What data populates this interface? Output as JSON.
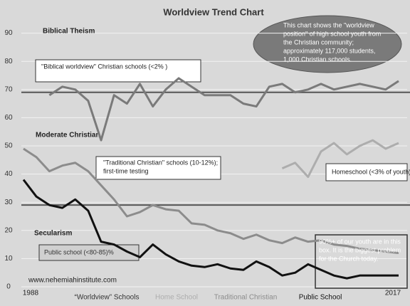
{
  "chart_data": {
    "type": "line",
    "title": "Worldview Trend Chart",
    "categories": [
      "1988",
      null,
      null,
      null,
      null,
      null,
      null,
      null,
      null,
      null,
      null,
      null,
      null,
      null,
      null,
      null,
      null,
      null,
      null,
      null,
      null,
      null,
      null,
      null,
      null,
      null,
      null,
      null,
      null,
      "2017"
    ],
    "series": [
      {
        "name": "“Worldview” Schools",
        "color": "#7a7a7a",
        "values": [
          null,
          null,
          68,
          71,
          70,
          66,
          52,
          68,
          65,
          72,
          64,
          70,
          74,
          71,
          68,
          68,
          68,
          65,
          64,
          71,
          72,
          69,
          70,
          72,
          70,
          71,
          72,
          71,
          70,
          73
        ]
      },
      {
        "name": "Home School",
        "color": "#adadad",
        "values": [
          null,
          null,
          null,
          null,
          null,
          null,
          null,
          null,
          null,
          null,
          null,
          null,
          null,
          null,
          null,
          null,
          null,
          null,
          null,
          null,
          42,
          44,
          39,
          48,
          51,
          47,
          50,
          52,
          49,
          51
        ]
      },
      {
        "name": "Traditional Christian",
        "color": "#8c8c8c",
        "values": [
          49,
          46,
          41,
          43,
          44,
          41,
          36,
          31,
          25,
          26.5,
          29,
          27.5,
          27,
          22.5,
          22,
          20,
          19,
          17,
          18.5,
          16.5,
          15.5,
          17.5,
          16,
          16.5,
          15,
          14.5,
          13.5,
          13,
          12.5,
          12
        ]
      },
      {
        "name": "Public School",
        "color": "#111111",
        "values": [
          38,
          32,
          29,
          28,
          31,
          27,
          16,
          15,
          12.5,
          10.5,
          15,
          11.5,
          9,
          7.5,
          7,
          8,
          6.5,
          6,
          9,
          7,
          4,
          5,
          8,
          6,
          4,
          3,
          4,
          4,
          4,
          4
        ]
      }
    ],
    "reference_lines": [
      69,
      29
    ],
    "ylim": [
      0,
      100
    ],
    "yticks": [
      0,
      10,
      20,
      30,
      40,
      50,
      60,
      70,
      80,
      90
    ],
    "grid": true,
    "zone_labels": [
      "Biblical Theism",
      "Moderate Christian",
      "Secularism"
    ],
    "annotations": [
      {
        "lines": [
          "\"Biblical worldview\" Christian schools (<2% )"
        ]
      },
      {
        "lines": [
          "\"Traditional Christian\" schools (10-12%);",
          "first-time testing"
        ]
      },
      {
        "lines": [
          "Homeschool (<3% of youth)"
        ]
      },
      {
        "lines": [
          "Public school (<80-85)%"
        ]
      },
      {
        "lines": [
          "90%+ of our youth are in this",
          "box.  It is the biggest problem",
          "for the Church today."
        ]
      },
      {
        "lines": [
          "This chart shows the \"worldview",
          "position\" of high school youth from",
          "the Christian community;",
          "approximately 117,000 students,",
          "1,000 Christian schools."
        ]
      }
    ],
    "source": "www.nehemiahinstitute.com"
  }
}
